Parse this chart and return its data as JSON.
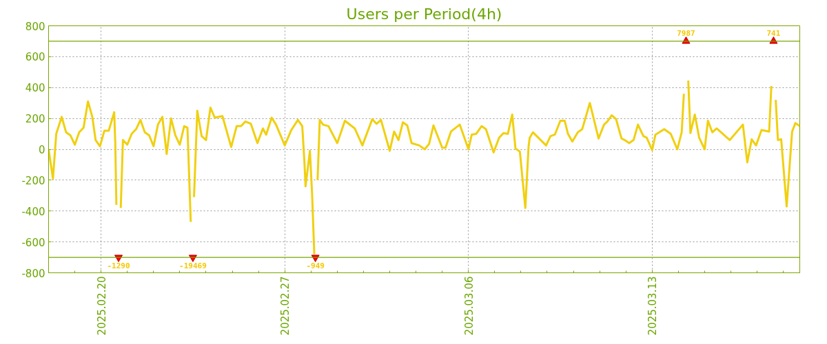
{
  "chart_data": {
    "type": "line",
    "title": "Users per Period(4h)",
    "x": [
      "2025-02-18T00:00",
      "2025-02-18T04:00",
      "2025-02-18T07:00",
      "2025-02-18T12:00",
      "2025-02-18T16:00",
      "2025-02-18T20:00",
      "2025-02-19T00:00",
      "2025-02-19T04:00",
      "2025-02-19T08:00",
      "2025-02-19T12:00",
      "2025-02-19T16:00",
      "2025-02-19T19:00",
      "2025-02-19T23:00",
      "2025-02-20T03:00",
      "2025-02-20T07:00",
      "2025-02-20T12:00",
      "2025-02-20T13:00",
      "2025-02-20T14:00",
      "2025-02-20T16:00",
      "2025-02-20T18:00",
      "2025-02-20T20:00",
      "2025-02-21T00:00",
      "2025-02-21T04:00",
      "2025-02-21T08:00",
      "2025-02-21T12:00",
      "2025-02-21T16:00",
      "2025-02-21T20:00",
      "2025-02-22T00:00",
      "2025-02-22T04:00",
      "2025-02-22T08:00",
      "2025-02-22T12:00",
      "2025-02-22T16:00",
      "2025-02-22T20:00",
      "2025-02-23T00:00",
      "2025-02-23T04:00",
      "2025-02-23T07:00",
      "2025-02-23T08:00",
      "2025-02-23T10:00",
      "2025-02-23T12:00",
      "2025-02-23T13:00",
      "2025-02-23T16:00",
      "2025-02-23T20:00",
      "2025-02-24T00:00",
      "2025-02-24T04:00",
      "2025-02-24T08:00",
      "2025-02-24T15:00",
      "2025-02-24T23:00",
      "2025-02-25T04:00",
      "2025-02-25T08:00",
      "2025-02-25T12:00",
      "2025-02-25T17:00",
      "2025-02-25T23:00",
      "2025-02-26T04:00",
      "2025-02-26T07:00",
      "2025-02-26T12:00",
      "2025-02-26T16:00",
      "2025-02-27T00:00",
      "2025-02-27T06:00",
      "2025-02-27T12:00",
      "2025-02-27T16:00",
      "2025-02-27T18:00",
      "2025-02-27T19:00",
      "2025-02-27T23:00",
      "2025-02-28T01:00",
      "2025-02-28T03:00",
      "2025-02-28T04:00",
      "2025-02-28T06:00",
      "2025-02-28T08:00",
      "2025-02-28T11:00",
      "2025-02-28T16:00",
      "2025-03-01T00:00",
      "2025-03-01T07:00",
      "2025-03-01T16:00",
      "2025-03-01T23:00",
      "2025-03-02T08:00",
      "2025-03-02T12:00",
      "2025-03-02T16:00",
      "2025-03-03T00:00",
      "2025-03-03T04:00",
      "2025-03-03T08:00",
      "2025-03-03T12:00",
      "2025-03-03T16:00",
      "2025-03-03T20:00",
      "2025-03-04T03:00",
      "2025-03-04T08:00",
      "2025-03-04T12:00",
      "2025-03-04T16:00",
      "2025-03-05T00:00",
      "2025-03-05T03:00",
      "2025-03-05T08:00",
      "2025-03-05T16:00",
      "2025-03-06T00:00",
      "2025-03-06T03:00",
      "2025-03-06T07:00",
      "2025-03-06T12:00",
      "2025-03-06T16:00",
      "2025-03-06T23:00",
      "2025-03-07T04:00",
      "2025-03-07T08:00",
      "2025-03-07T12:00",
      "2025-03-07T16:00",
      "2025-03-07T19:00",
      "2025-03-07T23:00",
      "2025-03-08T04:00",
      "2025-03-08T07:00",
      "2025-03-08T08:00",
      "2025-03-08T11:00",
      "2025-03-08T23:00",
      "2025-03-09T03:00",
      "2025-03-09T07:00",
      "2025-03-09T12:00",
      "2025-03-09T16:00",
      "2025-03-09T19:00",
      "2025-03-09T23:00",
      "2025-03-10T04:00",
      "2025-03-10T08:00",
      "2025-03-10T15:00",
      "2025-03-10T23:00",
      "2025-03-11T04:00",
      "2025-03-11T07:00",
      "2025-03-11T11:00",
      "2025-03-11T15:00",
      "2025-03-11T20:00",
      "2025-03-12T00:00",
      "2025-03-12T03:00",
      "2025-03-12T07:00",
      "2025-03-12T11:00",
      "2025-03-12T16:00",
      "2025-03-12T19:00",
      "2025-03-13T00:00",
      "2025-03-13T03:00",
      "2025-03-13T11:00",
      "2025-03-13T17:00",
      "2025-03-13T23:00",
      "2025-03-14T03:00",
      "2025-03-14T05:00",
      "2025-03-14T07:00",
      "2025-03-14T09:00",
      "2025-03-14T11:00",
      "2025-03-14T15:00",
      "2025-03-14T19:00",
      "2025-03-15T00:00",
      "2025-03-15T03:00",
      "2025-03-15T07:00",
      "2025-03-15T11:00",
      "2025-03-15T23:00",
      "2025-03-16T11:00",
      "2025-03-16T15:00",
      "2025-03-16T19:00",
      "2025-03-16T23:00",
      "2025-03-17T04:00",
      "2025-03-17T11:00",
      "2025-03-17T13:00",
      "2025-03-17T15:00",
      "2025-03-17T17:00",
      "2025-03-17T19:00",
      "2025-03-17T22:00",
      "2025-03-18T03:00",
      "2025-03-18T08:00",
      "2025-03-18T11:00",
      "2025-03-18T15:00"
    ],
    "series": [
      {
        "color": "#f0d010",
        "values": [
          0,
          -190,
          100,
          210,
          110,
          90,
          30,
          110,
          140,
          310,
          210,
          60,
          20,
          120,
          120,
          240,
          40,
          -360,
          null,
          -380,
          60,
          30,
          100,
          130,
          190,
          110,
          90,
          20,
          160,
          210,
          -30,
          200,
          90,
          30,
          150,
          140,
          -60,
          -470,
          null,
          -310,
          250,
          85,
          60,
          270,
          205,
          215,
          15,
          150,
          150,
          180,
          165,
          40,
          135,
          95,
          205,
          160,
          25,
          125,
          190,
          150,
          -85,
          -240,
          -10,
          -290,
          -680,
          null,
          -200,
          190,
          160,
          150,
          40,
          185,
          135,
          25,
          195,
          165,
          190,
          -10,
          115,
          60,
          175,
          155,
          40,
          25,
          0,
          35,
          155,
          10,
          10,
          115,
          160,
          0,
          95,
          100,
          150,
          130,
          -20,
          75,
          105,
          100,
          225,
          5,
          -15,
          -380,
          20,
          75,
          110,
          25,
          85,
          95,
          185,
          185,
          100,
          50,
          110,
          130,
          300,
          70,
          160,
          180,
          220,
          195,
          70,
          55,
          40,
          60,
          160,
          85,
          75,
          -5,
          95,
          130,
          100,
          0,
          110,
          360,
          null,
          445,
          105,
          225,
          75,
          0,
          185,
          110,
          135,
          60,
          160,
          -85,
          65,
          25,
          125,
          115,
          410,
          null,
          320,
          60,
          65,
          -370,
          115,
          170,
          150
        ]
      }
    ],
    "xlim": [
      "2025-02-18T00:00",
      "2025-03-18T15:00"
    ],
    "xticks": [
      {
        "value": "2025-02-20",
        "label": "2025.02.20"
      },
      {
        "value": "2025-02-27",
        "label": "2025.02.27"
      },
      {
        "value": "2025-03-06",
        "label": "2025.03.06"
      },
      {
        "value": "2025-03-13",
        "label": "2025.03.13"
      }
    ],
    "ylim": [
      -800,
      800
    ],
    "yticks": [
      -800,
      -600,
      -400,
      -200,
      0,
      200,
      400,
      600,
      800
    ],
    "ref_lines": [
      {
        "axis": "y",
        "value": 700,
        "color": "#7aa500"
      },
      {
        "axis": "y",
        "value": -700,
        "color": "#7aa500"
      }
    ],
    "annotations": [
      {
        "text": "-1290",
        "x": "2025-02-20T16:00",
        "y": -700
      },
      {
        "text": "-19469",
        "x": "2025-02-23T12:00",
        "y": -700
      },
      {
        "text": "-949",
        "x": "2025-02-28T04:00",
        "y": -700
      },
      {
        "text": "7987",
        "x": "2025-03-14T07:00",
        "y": 700
      },
      {
        "text": "741",
        "x": "2025-03-17T15:00",
        "y": 700
      }
    ],
    "grid": true,
    "line_style": "solid"
  }
}
